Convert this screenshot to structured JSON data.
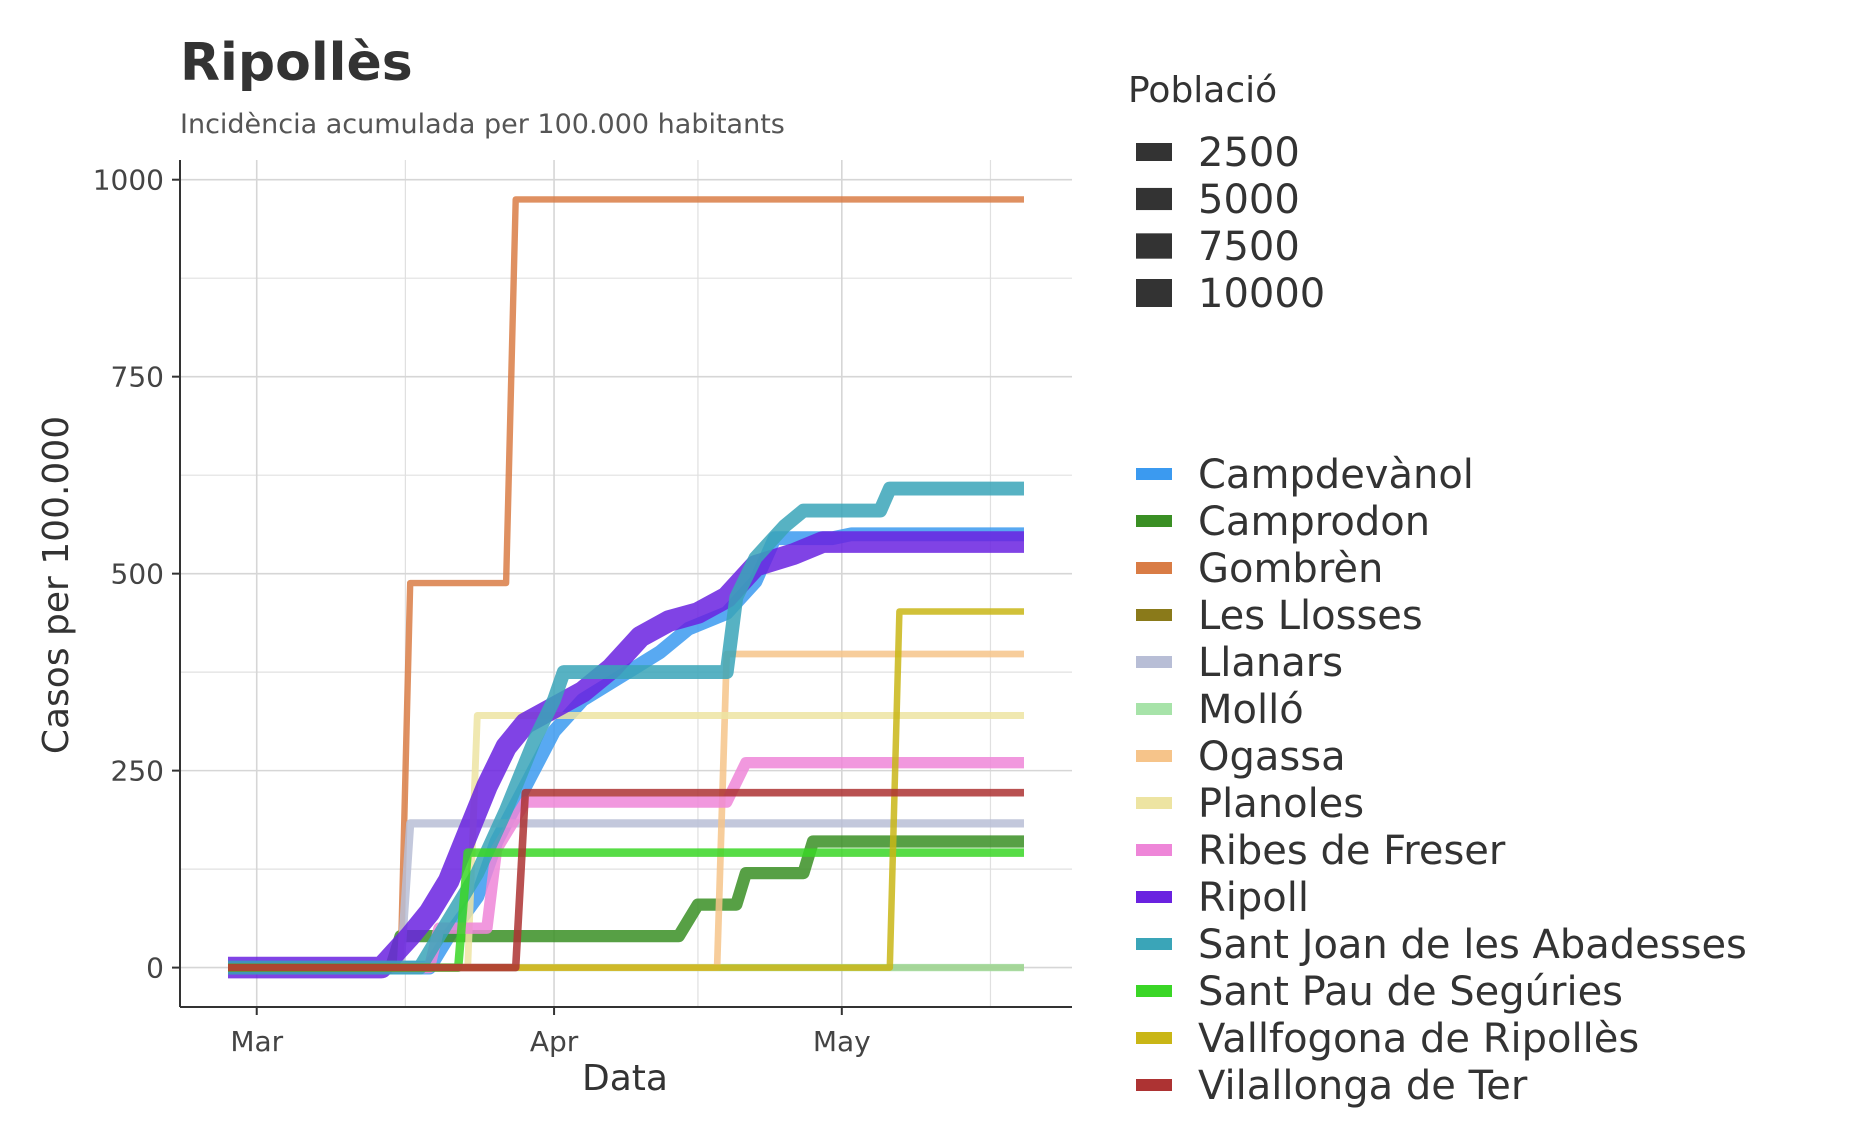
{
  "chart_data": {
    "type": "line",
    "title": "Ripollès",
    "subtitle": "Incidència acumulada per 100.000 habitants",
    "xlabel": "Data",
    "ylabel": "Casos per 100.000",
    "x_ticks": [
      "Mar",
      "Apr",
      "May"
    ],
    "x_tick_dates": [
      "2020-03-01",
      "2020-04-01",
      "2020-05-01"
    ],
    "xlim": [
      "2020-02-22",
      "2020-05-25"
    ],
    "y_ticks": [
      0,
      250,
      500,
      750,
      1000
    ],
    "ylim": [
      -50,
      1025
    ],
    "grid": true,
    "legend_population": {
      "title": "Població",
      "entries": [
        {
          "label": "2500",
          "value": 2500
        },
        {
          "label": "5000",
          "value": 5000
        },
        {
          "label": "7500",
          "value": 7500
        },
        {
          "label": "10000",
          "value": 10000
        }
      ]
    },
    "series": [
      {
        "name": "Campdevànol",
        "color": "#3b9af0",
        "population": 3300,
        "points": [
          [
            "2020-02-27",
            0
          ],
          [
            "2020-03-19",
            0
          ],
          [
            "2020-03-21",
            40
          ],
          [
            "2020-03-24",
            90
          ],
          [
            "2020-03-26",
            160
          ],
          [
            "2020-03-29",
            230
          ],
          [
            "2020-04-01",
            300
          ],
          [
            "2020-04-04",
            340
          ],
          [
            "2020-04-08",
            370
          ],
          [
            "2020-04-12",
            400
          ],
          [
            "2020-04-15",
            430
          ],
          [
            "2020-04-19",
            450
          ],
          [
            "2020-04-22",
            490
          ],
          [
            "2020-04-24",
            545
          ],
          [
            "2020-04-30",
            545
          ],
          [
            "2020-05-02",
            550
          ],
          [
            "2020-05-20",
            550
          ]
        ]
      },
      {
        "name": "Camprodon",
        "color": "#3a8f24",
        "population": 2400,
        "points": [
          [
            "2020-02-27",
            0
          ],
          [
            "2020-03-15",
            0
          ],
          [
            "2020-03-16",
            40
          ],
          [
            "2020-04-14",
            40
          ],
          [
            "2020-04-16",
            80
          ],
          [
            "2020-04-20",
            80
          ],
          [
            "2020-04-21",
            120
          ],
          [
            "2020-04-27",
            120
          ],
          [
            "2020-04-28",
            160
          ],
          [
            "2020-05-20",
            160
          ]
        ]
      },
      {
        "name": "Gombrèn",
        "color": "#d97c45",
        "population": 200,
        "points": [
          [
            "2020-02-27",
            0
          ],
          [
            "2020-03-16",
            0
          ],
          [
            "2020-03-17",
            488
          ],
          [
            "2020-03-27",
            488
          ],
          [
            "2020-03-28",
            975
          ],
          [
            "2020-05-20",
            975
          ]
        ]
      },
      {
        "name": "Les Llosses",
        "color": "#8a7a1a",
        "population": 200,
        "points": [
          [
            "2020-02-27",
            0
          ],
          [
            "2020-05-20",
            0
          ]
        ]
      },
      {
        "name": "Llanars",
        "color": "#b8bed6",
        "population": 600,
        "points": [
          [
            "2020-02-27",
            0
          ],
          [
            "2020-03-16",
            0
          ],
          [
            "2020-03-17",
            183
          ],
          [
            "2020-05-20",
            183
          ]
        ]
      },
      {
        "name": "Molló",
        "color": "#a7e3a9",
        "population": 400,
        "points": [
          [
            "2020-02-27",
            0
          ],
          [
            "2020-05-20",
            0
          ]
        ]
      },
      {
        "name": "Ogassa",
        "color": "#f6c48a",
        "population": 250,
        "points": [
          [
            "2020-02-27",
            0
          ],
          [
            "2020-04-18",
            0
          ],
          [
            "2020-04-19",
            398
          ],
          [
            "2020-05-20",
            398
          ]
        ]
      },
      {
        "name": "Planoles",
        "color": "#ede4a2",
        "population": 300,
        "points": [
          [
            "2020-02-27",
            0
          ],
          [
            "2020-03-23",
            0
          ],
          [
            "2020-03-24",
            320
          ],
          [
            "2020-05-20",
            320
          ]
        ]
      },
      {
        "name": "Ribes de Freser",
        "color": "#ee86d8",
        "population": 1900,
        "points": [
          [
            "2020-02-27",
            0
          ],
          [
            "2020-03-19",
            0
          ],
          [
            "2020-03-20",
            50
          ],
          [
            "2020-03-25",
            50
          ],
          [
            "2020-03-26",
            150
          ],
          [
            "2020-03-29",
            210
          ],
          [
            "2020-04-19",
            210
          ],
          [
            "2020-04-21",
            260
          ],
          [
            "2020-05-20",
            260
          ]
        ]
      },
      {
        "name": "Ripoll",
        "color": "#6a22e0",
        "population": 10700,
        "points": [
          [
            "2020-02-27",
            0
          ],
          [
            "2020-03-14",
            0
          ],
          [
            "2020-03-17",
            40
          ],
          [
            "2020-03-19",
            70
          ],
          [
            "2020-03-21",
            110
          ],
          [
            "2020-03-23",
            170
          ],
          [
            "2020-03-25",
            230
          ],
          [
            "2020-03-27",
            280
          ],
          [
            "2020-03-29",
            310
          ],
          [
            "2020-04-01",
            330
          ],
          [
            "2020-04-04",
            350
          ],
          [
            "2020-04-07",
            380
          ],
          [
            "2020-04-10",
            420
          ],
          [
            "2020-04-13",
            440
          ],
          [
            "2020-04-16",
            450
          ],
          [
            "2020-04-19",
            470
          ],
          [
            "2020-04-22",
            510
          ],
          [
            "2020-04-26",
            525
          ],
          [
            "2020-04-29",
            540
          ],
          [
            "2020-05-20",
            540
          ]
        ]
      },
      {
        "name": "Sant Joan de les Abadesses",
        "color": "#3aa5b8",
        "population": 3400,
        "points": [
          [
            "2020-02-27",
            0
          ],
          [
            "2020-03-18",
            0
          ],
          [
            "2020-03-21",
            60
          ],
          [
            "2020-03-24",
            120
          ],
          [
            "2020-03-27",
            200
          ],
          [
            "2020-03-30",
            290
          ],
          [
            "2020-04-01",
            340
          ],
          [
            "2020-04-02",
            375
          ],
          [
            "2020-04-19",
            375
          ],
          [
            "2020-04-20",
            470
          ],
          [
            "2020-04-22",
            520
          ],
          [
            "2020-04-25",
            560
          ],
          [
            "2020-04-27",
            580
          ],
          [
            "2020-05-05",
            580
          ],
          [
            "2020-05-06",
            608
          ],
          [
            "2020-05-20",
            608
          ]
        ]
      },
      {
        "name": "Sant Pau de Segúries",
        "color": "#3ad626",
        "population": 700,
        "points": [
          [
            "2020-02-27",
            0
          ],
          [
            "2020-03-22",
            0
          ],
          [
            "2020-03-23",
            146
          ],
          [
            "2020-05-20",
            146
          ]
        ]
      },
      {
        "name": "Vallfogona de Ripollès",
        "color": "#c9b616",
        "population": 220,
        "points": [
          [
            "2020-02-27",
            0
          ],
          [
            "2020-05-06",
            0
          ],
          [
            "2020-05-07",
            452
          ],
          [
            "2020-05-20",
            452
          ]
        ]
      },
      {
        "name": "Vilallonga de Ter",
        "color": "#ad3333",
        "population": 450,
        "points": [
          [
            "2020-02-27",
            0
          ],
          [
            "2020-03-28",
            0
          ],
          [
            "2020-03-29",
            222
          ],
          [
            "2020-05-20",
            222
          ]
        ]
      }
    ]
  }
}
